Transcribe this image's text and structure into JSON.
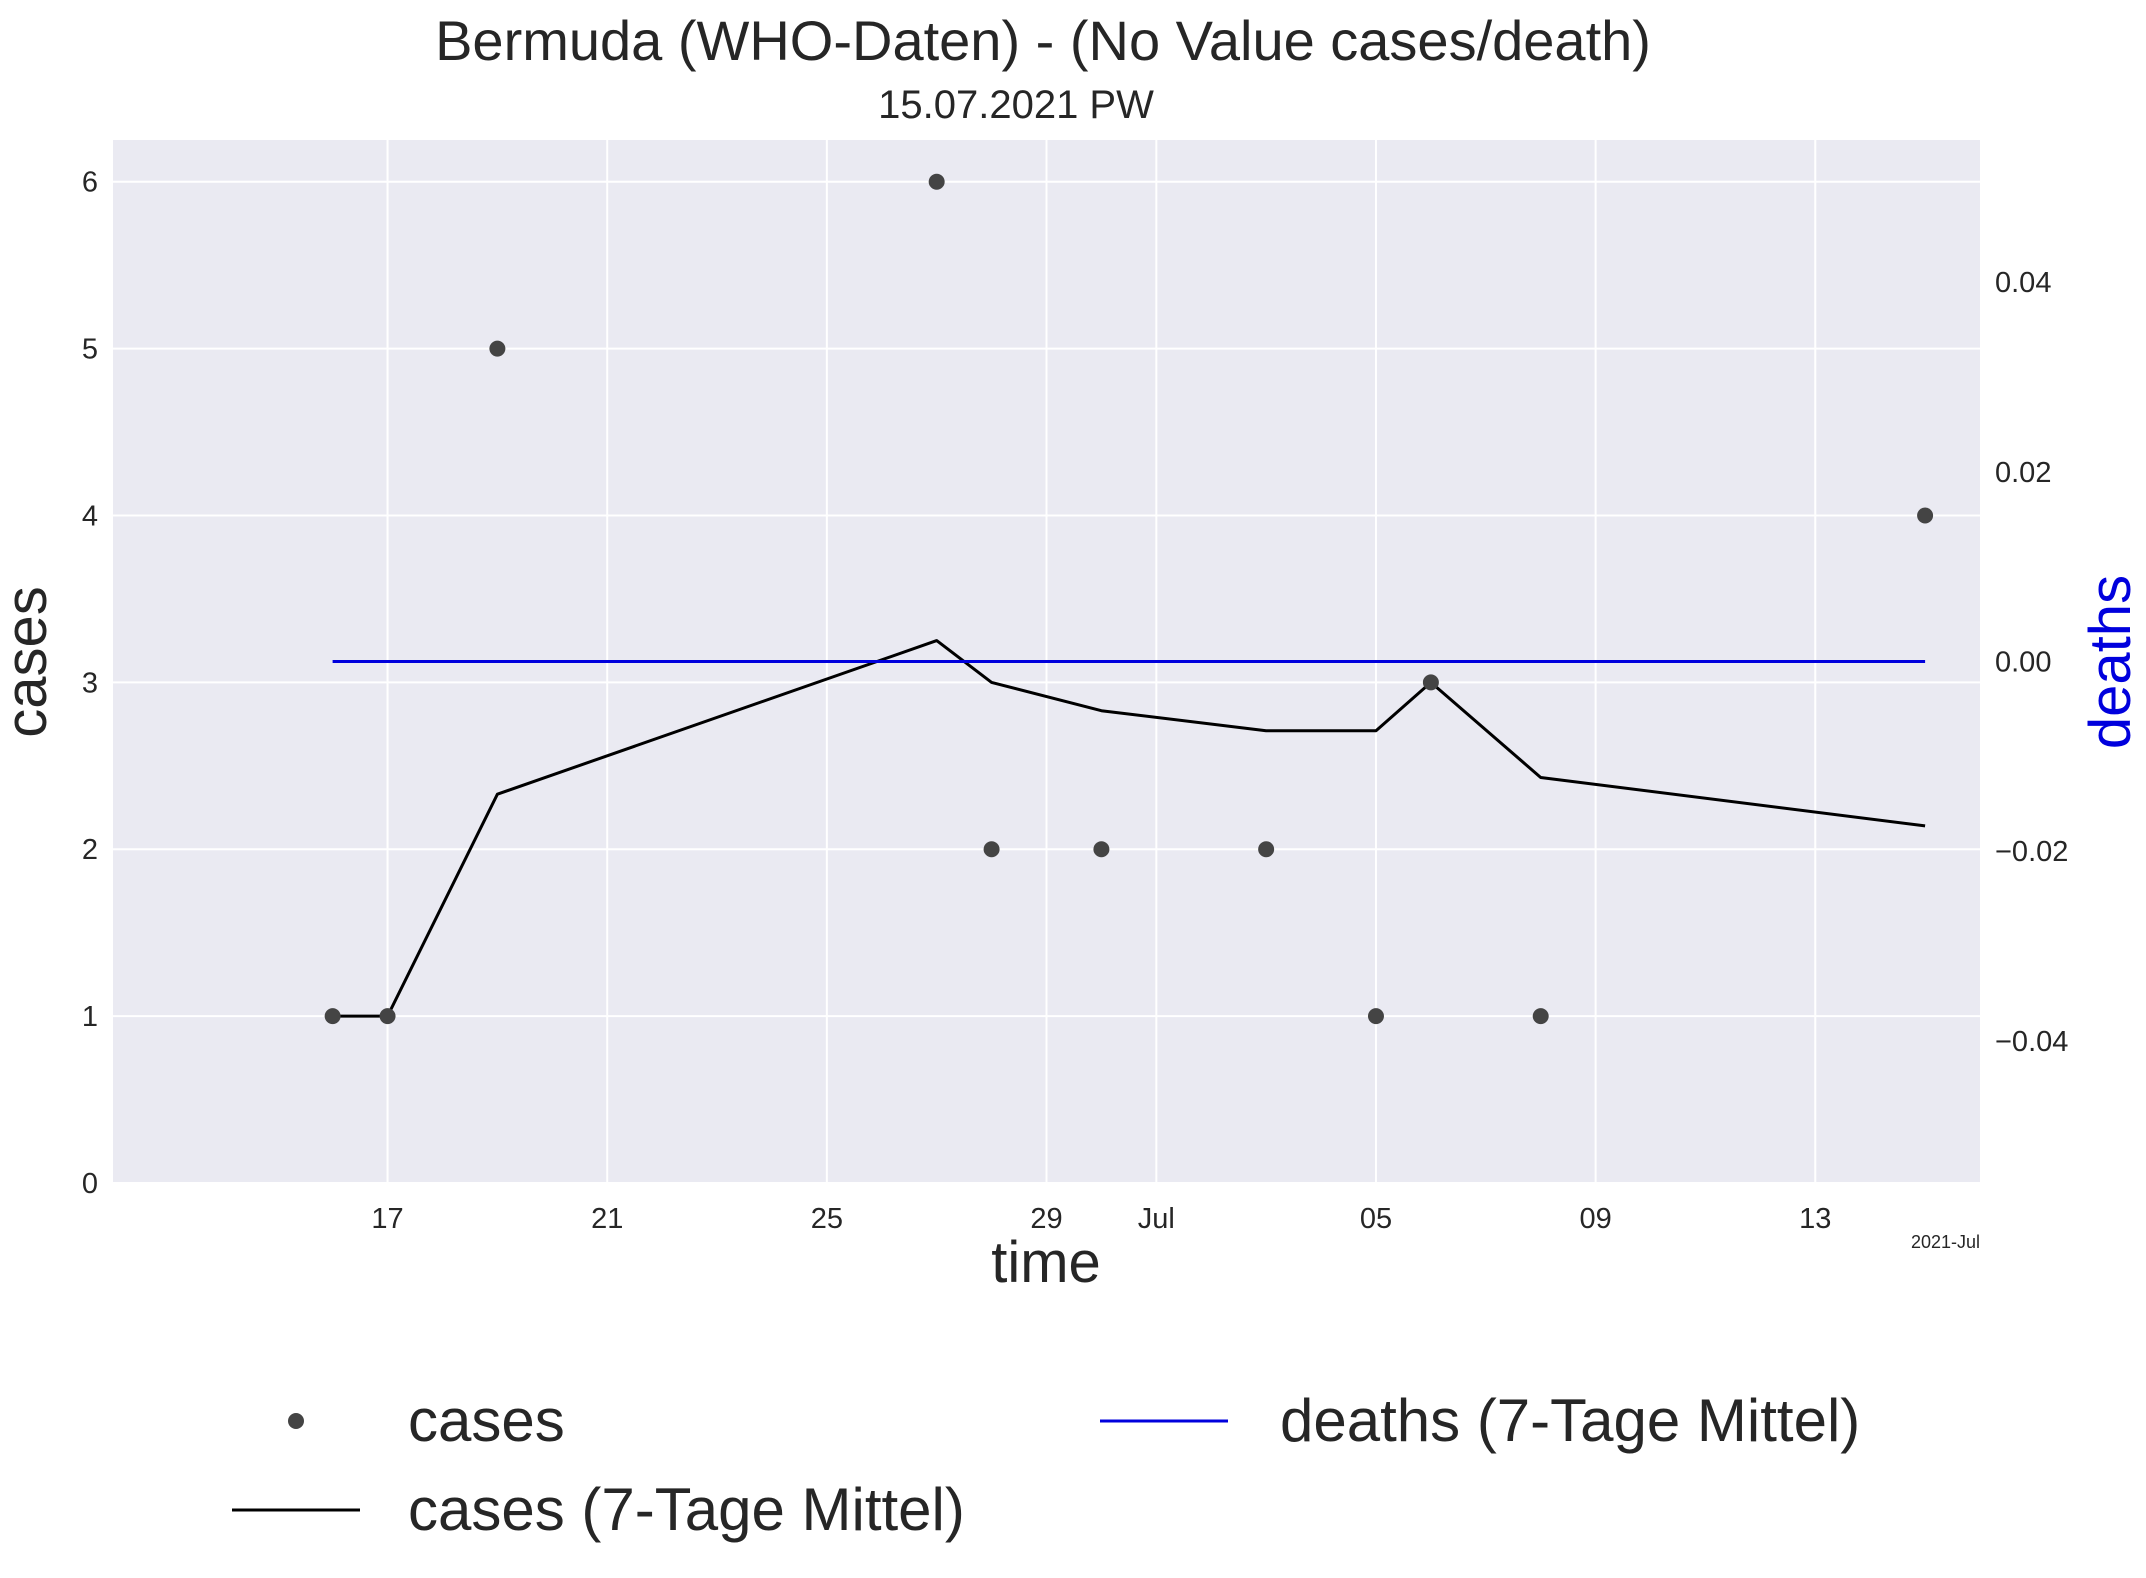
{
  "chart_data": {
    "type": "line",
    "title": "Bermuda (WHO-Daten) - (No Value cases/death)",
    "subtitle": "15.07.2021 PW",
    "xlabel": "time",
    "ylabel": "cases",
    "y2label": "deaths",
    "x_axis": {
      "type": "date",
      "range": [
        "2021-06-12",
        "2021-07-16"
      ],
      "ticks": [
        {
          "date": "2021-06-17",
          "label": "17"
        },
        {
          "date": "2021-06-21",
          "label": "21"
        },
        {
          "date": "2021-06-25",
          "label": "25"
        },
        {
          "date": "2021-06-29",
          "label": "29"
        },
        {
          "date": "2021-07-01",
          "label": "Jul"
        },
        {
          "date": "2021-07-05",
          "label": "05"
        },
        {
          "date": "2021-07-09",
          "label": "09"
        },
        {
          "date": "2021-07-13",
          "label": "13"
        }
      ],
      "offset_label": "2021-Jul"
    },
    "y_axis": {
      "range": [
        0,
        6.25
      ],
      "ticks": [
        0,
        1,
        2,
        3,
        4,
        5,
        6
      ],
      "tick_labels": [
        "0",
        "1",
        "2",
        "3",
        "4",
        "5",
        "6"
      ]
    },
    "y2_axis": {
      "range": [
        -0.055,
        0.055
      ],
      "ticks": [
        -0.04,
        -0.02,
        0.0,
        0.02,
        0.04
      ],
      "tick_labels": [
        "−0.04",
        "−0.02",
        "0.00",
        "0.02",
        "0.04"
      ]
    },
    "grid": true,
    "legend_position": "bottom",
    "series": [
      {
        "name": "cases",
        "kind": "scatter",
        "axis": "left",
        "color": "#444444",
        "points": [
          {
            "x": "2021-06-16",
            "y": 1
          },
          {
            "x": "2021-06-17",
            "y": 1
          },
          {
            "x": "2021-06-19",
            "y": 5
          },
          {
            "x": "2021-06-27",
            "y": 6
          },
          {
            "x": "2021-06-28",
            "y": 2
          },
          {
            "x": "2021-06-30",
            "y": 2
          },
          {
            "x": "2021-07-03",
            "y": 2
          },
          {
            "x": "2021-07-05",
            "y": 1
          },
          {
            "x": "2021-07-06",
            "y": 3
          },
          {
            "x": "2021-07-08",
            "y": 1
          },
          {
            "x": "2021-07-15",
            "y": 4
          }
        ]
      },
      {
        "name": "cases (7-Tage Mittel)",
        "kind": "line",
        "axis": "left",
        "color": "#000000",
        "points": [
          {
            "x": "2021-06-16",
            "y": 1.0
          },
          {
            "x": "2021-06-17",
            "y": 1.0
          },
          {
            "x": "2021-06-19",
            "y": 2.33
          },
          {
            "x": "2021-06-27",
            "y": 3.25
          },
          {
            "x": "2021-06-28",
            "y": 3.0
          },
          {
            "x": "2021-06-30",
            "y": 2.83
          },
          {
            "x": "2021-07-03",
            "y": 2.71
          },
          {
            "x": "2021-07-05",
            "y": 2.71
          },
          {
            "x": "2021-07-06",
            "y": 3.0
          },
          {
            "x": "2021-07-08",
            "y": 2.43
          },
          {
            "x": "2021-07-15",
            "y": 2.14
          }
        ]
      },
      {
        "name": "deaths (7-Tage Mittel)",
        "kind": "line",
        "axis": "right",
        "color": "#0000dd",
        "points": [
          {
            "x": "2021-06-16",
            "y": 0.0
          },
          {
            "x": "2021-07-15",
            "y": 0.0
          }
        ]
      }
    ],
    "colors": {
      "plot_background": "#eaeaf2",
      "grid": "#ffffff",
      "text": "#262626",
      "deaths_label": "#0000dd"
    }
  }
}
